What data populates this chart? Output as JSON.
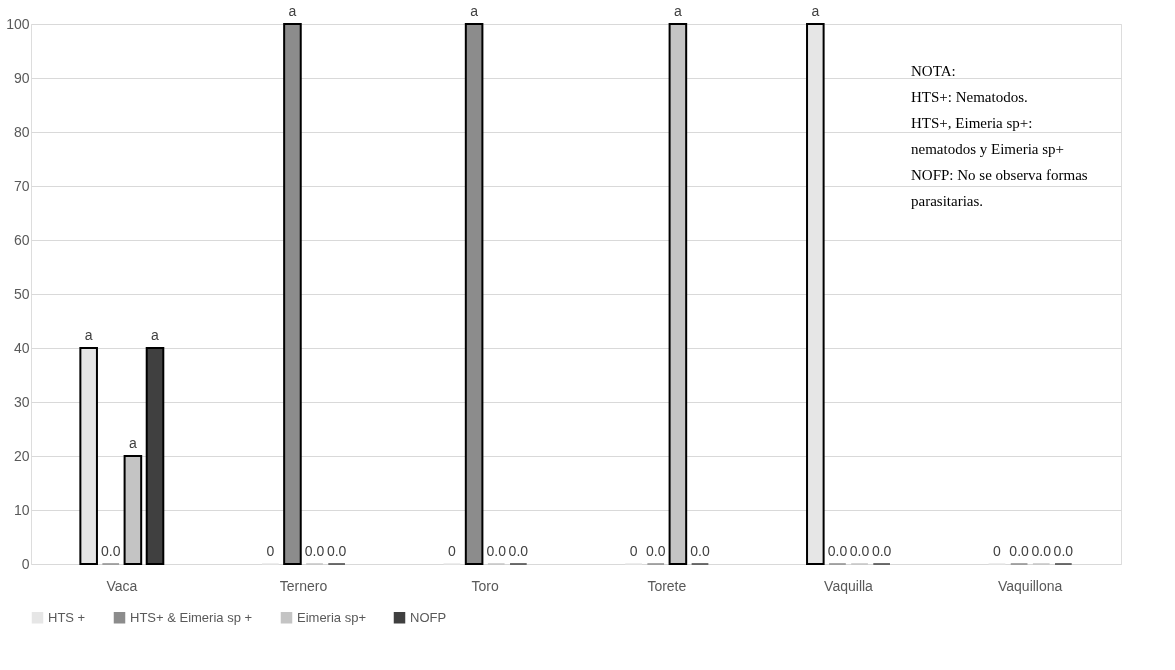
{
  "chart_data": {
    "type": "bar",
    "categories": [
      "Vaca",
      "Ternero",
      "Toro",
      "Torete",
      "Vaquilla",
      "Vaquillona"
    ],
    "series": [
      {
        "name": "HTS +",
        "color": "#e6e6e6",
        "values": [
          40,
          0,
          0,
          0,
          100,
          0
        ],
        "value_labels": [
          "a",
          "0",
          "0",
          "0",
          "a",
          "0"
        ]
      },
      {
        "name": "HTS+ & Eimeria sp +",
        "color": "#8c8c8c",
        "values": [
          0,
          100,
          100,
          0,
          0,
          0
        ],
        "value_labels": [
          "0.0",
          "a",
          "a",
          "0.0",
          "0.0",
          "0.0"
        ]
      },
      {
        "name": "Eimeria sp+",
        "color": "#c4c4c4",
        "values": [
          20,
          0,
          0,
          100,
          0,
          0
        ],
        "value_labels": [
          "a",
          "0.0",
          "0.0",
          "a",
          "0.0",
          "0.0"
        ]
      },
      {
        "name": "NOFP",
        "color": "#404040",
        "values": [
          40,
          0,
          0,
          0,
          0,
          0
        ],
        "value_labels": [
          "a",
          "0.0",
          "0.0",
          "0.0",
          "0.0",
          "0.0"
        ]
      }
    ],
    "ylim": [
      0,
      100
    ],
    "yticks": [
      0,
      10,
      20,
      30,
      40,
      50,
      60,
      70,
      80,
      90,
      100
    ],
    "grid": "y",
    "legend": "bottom",
    "annotations": [
      "NOTA:",
      "HTS+: Nematodos.",
      "HTS+, Eimeria sp+:",
      "nematodos y Eimeria sp+",
      "NOFP: No se observa formas",
      "parasitarias."
    ]
  }
}
